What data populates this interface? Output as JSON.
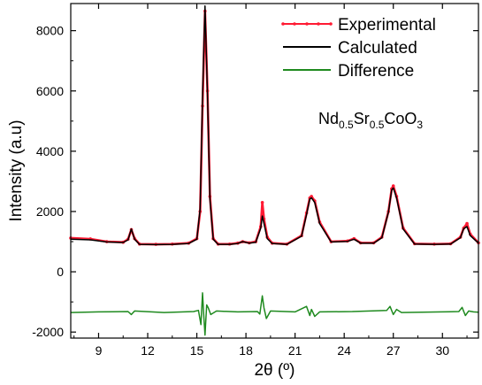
{
  "chart_data": {
    "type": "line",
    "xlabel": "2θ (º)",
    "ylabel": "Intensity (a.u)",
    "xlim": [
      7.3,
      32.2
    ],
    "ylim": [
      -2200,
      8900
    ],
    "x_ticks": [
      9,
      12,
      15,
      18,
      21,
      24,
      27,
      30
    ],
    "y_ticks": [
      -2000,
      0,
      2000,
      4000,
      6000,
      8000
    ],
    "legend_position": "top-right",
    "annotation": {
      "parts": [
        {
          "text": "Nd",
          "sub": false
        },
        {
          "text": "0.5",
          "sub": true
        },
        {
          "text": "Sr",
          "sub": false
        },
        {
          "text": "0.5",
          "sub": true
        },
        {
          "text": "CoO",
          "sub": false
        },
        {
          "text": "3",
          "sub": true
        }
      ]
    },
    "series": [
      {
        "name": "Experimental",
        "color": "#ff1a33",
        "style": "line-with-markers",
        "x": [
          7.3,
          8.5,
          9.5,
          10.5,
          10.8,
          11.0,
          11.2,
          11.5,
          12.5,
          13.5,
          14.5,
          15.0,
          15.2,
          15.35,
          15.5,
          15.65,
          15.8,
          16.0,
          16.3,
          17.0,
          17.5,
          17.8,
          18.2,
          18.6,
          18.9,
          19.0,
          19.1,
          19.3,
          19.6,
          20.5,
          21.4,
          21.7,
          21.9,
          22.0,
          22.2,
          22.5,
          23.2,
          24.2,
          24.6,
          25.0,
          25.8,
          26.3,
          26.7,
          26.9,
          27.0,
          27.2,
          27.6,
          28.3,
          29.5,
          30.5,
          31.1,
          31.3,
          31.5,
          31.7,
          32.2
        ],
        "y": [
          1120,
          1090,
          1000,
          980,
          1080,
          1400,
          1100,
          920,
          910,
          920,
          950,
          1100,
          2000,
          5500,
          8650,
          6000,
          2500,
          1100,
          920,
          920,
          950,
          1000,
          960,
          1000,
          1500,
          2300,
          1750,
          1150,
          950,
          920,
          1200,
          1950,
          2450,
          2500,
          2350,
          1650,
          1000,
          1020,
          1100,
          960,
          960,
          1150,
          2000,
          2750,
          2850,
          2500,
          1450,
          930,
          920,
          930,
          1150,
          1450,
          1600,
          1250,
          960
        ]
      },
      {
        "name": "Calculated",
        "color": "#000000",
        "style": "line",
        "x": [
          7.3,
          8.5,
          9.5,
          10.5,
          10.8,
          11.0,
          11.2,
          11.5,
          12.5,
          13.5,
          14.5,
          15.0,
          15.2,
          15.35,
          15.5,
          15.65,
          15.8,
          16.0,
          16.3,
          17.0,
          17.5,
          17.8,
          18.2,
          18.6,
          18.9,
          19.0,
          19.1,
          19.3,
          19.6,
          20.5,
          21.4,
          21.7,
          21.9,
          22.0,
          22.2,
          22.5,
          23.2,
          24.2,
          24.6,
          25.0,
          25.8,
          26.3,
          26.7,
          26.9,
          27.0,
          27.2,
          27.6,
          28.3,
          29.5,
          30.5,
          31.1,
          31.3,
          31.5,
          31.7,
          32.2
        ],
        "y": [
          1080,
          1060,
          990,
          970,
          1060,
          1420,
          1080,
          910,
          900,
          910,
          940,
          1080,
          2100,
          5800,
          8820,
          5900,
          2400,
          1080,
          910,
          910,
          940,
          1000,
          950,
          980,
          1450,
          1850,
          1600,
          1100,
          940,
          910,
          1180,
          1900,
          2420,
          2450,
          2300,
          1600,
          990,
          1010,
          1080,
          950,
          950,
          1130,
          1980,
          2720,
          2780,
          2450,
          1420,
          920,
          910,
          920,
          1130,
          1430,
          1500,
          1200,
          950
        ]
      },
      {
        "name": "Difference",
        "color": "#1f8a1f",
        "style": "line",
        "x": [
          7.3,
          9.0,
          10.8,
          11.0,
          11.2,
          13.0,
          14.8,
          15.1,
          15.25,
          15.35,
          15.42,
          15.5,
          15.6,
          15.7,
          15.85,
          16.2,
          17.5,
          18.7,
          18.85,
          19.0,
          19.1,
          19.25,
          19.5,
          21.0,
          21.7,
          21.9,
          22.0,
          22.2,
          22.5,
          24.5,
          26.6,
          26.8,
          27.0,
          27.2,
          27.5,
          30.0,
          31.0,
          31.2,
          31.4,
          31.6,
          31.9,
          32.2
        ],
        "y": [
          -1350,
          -1330,
          -1320,
          -1420,
          -1300,
          -1350,
          -1320,
          -1280,
          -1750,
          -700,
          -1400,
          -2100,
          -1100,
          -1200,
          -1420,
          -1300,
          -1330,
          -1320,
          -1400,
          -800,
          -1200,
          -1550,
          -1300,
          -1330,
          -1150,
          -1450,
          -1250,
          -1480,
          -1330,
          -1320,
          -1280,
          -1150,
          -1420,
          -1250,
          -1350,
          -1330,
          -1320,
          -1180,
          -1450,
          -1300,
          -1330,
          -1340
        ]
      }
    ]
  }
}
